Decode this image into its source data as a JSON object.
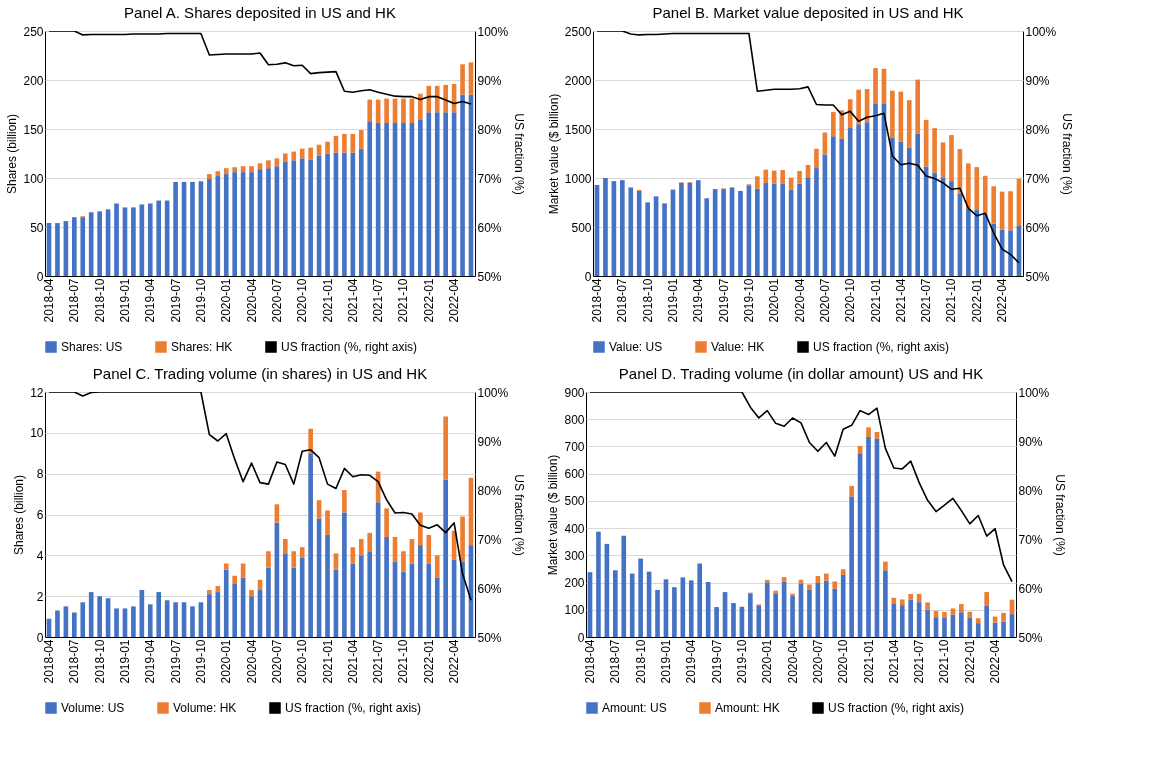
{
  "chart_data": [
    {
      "type": "bar",
      "stacked": true,
      "title": "Panel A. Shares deposited in US and HK",
      "ylabel": "Shares (billion)",
      "y2label": "US fraction (%)",
      "categories": [
        "2018-04",
        null,
        null,
        "2018-07",
        null,
        null,
        "2018-10",
        null,
        null,
        "2019-01",
        null,
        null,
        "2019-04",
        null,
        null,
        "2019-07",
        null,
        null,
        "2019-10",
        null,
        null,
        "2020-01",
        null,
        null,
        "2020-04",
        null,
        null,
        "2020-07",
        null,
        null,
        "2020-10",
        null,
        null,
        "2021-01",
        null,
        null,
        "2021-04",
        null,
        null,
        "2021-07",
        null,
        null,
        "2021-10",
        null,
        null,
        "2022-01",
        null,
        null,
        "2022-04",
        null,
        null
      ],
      "ylim": [
        0,
        250
      ],
      "yticks": [
        0,
        50,
        100,
        150,
        200,
        250
      ],
      "y2lim": [
        50,
        100
      ],
      "y2ticks": [
        {
          "value": 50,
          "label": "50%"
        },
        {
          "value": 60,
          "label": "60%"
        },
        {
          "value": 70,
          "label": "70%"
        },
        {
          "value": 80,
          "label": "80%"
        },
        {
          "value": 90,
          "label": "90%"
        },
        {
          "value": 100,
          "label": "100%"
        }
      ],
      "grid": "y",
      "legend": "bottom",
      "marker": "none",
      "line_style": "solid",
      "series": [
        {
          "name": "Shares: US",
          "color": "#4472c4",
          "values": [
            54,
            54,
            56,
            60,
            60,
            65,
            66,
            68,
            74,
            70,
            70,
            73,
            74,
            77,
            77,
            96,
            96,
            96,
            96,
            99,
            102,
            104,
            106,
            106,
            106,
            109,
            110,
            112,
            117,
            118,
            120,
            119,
            123,
            125,
            126,
            126,
            126,
            130,
            158,
            156,
            156,
            156,
            156,
            156,
            160,
            167,
            167,
            167,
            167,
            185,
            185
          ]
        },
        {
          "name": "Shares: HK",
          "color": "#ed7d31",
          "values": [
            0,
            0,
            0,
            0,
            1,
            0,
            0,
            0,
            0,
            0,
            0,
            0,
            0,
            0,
            0,
            0,
            0,
            0,
            1,
            5,
            5,
            6,
            5,
            6,
            6,
            6,
            8,
            8,
            8,
            9,
            10,
            12,
            11,
            12,
            17,
            19,
            19,
            19,
            22,
            24,
            25,
            25,
            25,
            25,
            26,
            27,
            27,
            28,
            29,
            31,
            33
          ]
        },
        {
          "name": "US fraction (%, right axis)",
          "type": "line",
          "axis": "y2",
          "color": "#000000",
          "values": [
            100,
            100,
            100,
            100,
            99.2,
            99.3,
            99.3,
            99.3,
            99.3,
            99.3,
            99.4,
            99.4,
            99.4,
            99.4,
            99.5,
            99.5,
            99.5,
            99.5,
            99.5,
            95.1,
            95.2,
            95.3,
            95.3,
            95.3,
            95.3,
            95.5,
            93.1,
            93.2,
            93.5,
            92.9,
            93,
            91.3,
            91.5,
            91.6,
            91.7,
            87.7,
            87.5,
            87.8,
            88,
            87.5,
            87.1,
            86.7,
            86.6,
            86.6,
            86,
            86.6,
            86.6,
            85.9,
            85.2,
            85.6,
            85.1
          ]
        }
      ]
    },
    {
      "type": "bar",
      "stacked": true,
      "title": "Panel B. Market value deposited in US and HK",
      "ylabel": "Market value ($ billion)",
      "y2label": "US fraction (%)",
      "categories": [
        "2018-04",
        null,
        null,
        "2018-07",
        null,
        null,
        "2018-10",
        null,
        null,
        "2019-01",
        null,
        null,
        "2019-04",
        null,
        null,
        "2019-07",
        null,
        null,
        "2019-10",
        null,
        null,
        "2020-01",
        null,
        null,
        "2020-04",
        null,
        null,
        "2020-07",
        null,
        null,
        "2020-10",
        null,
        null,
        "2021-01",
        null,
        null,
        "2021-04",
        null,
        null,
        "2021-07",
        null,
        null,
        "2021-10",
        null,
        null,
        "2022-01",
        null,
        null,
        "2022-04",
        null,
        null
      ],
      "ylim": [
        0,
        2500
      ],
      "yticks": [
        0,
        500,
        1000,
        1500,
        2000,
        2500
      ],
      "y2lim": [
        50,
        100
      ],
      "y2ticks": [
        {
          "value": 50,
          "label": "50%"
        },
        {
          "value": 60,
          "label": "60%"
        },
        {
          "value": 70,
          "label": "70%"
        },
        {
          "value": 80,
          "label": "80%"
        },
        {
          "value": 90,
          "label": "90%"
        },
        {
          "value": 100,
          "label": "100%"
        }
      ],
      "grid": "y",
      "legend": "bottom",
      "marker": "none",
      "line_style": "solid",
      "series": [
        {
          "name": "Value: US",
          "color": "#4472c4",
          "values": [
            929,
            1000,
            968,
            978,
            900,
            868,
            751,
            813,
            741,
            877,
            949,
            952,
            978,
            793,
            887,
            887,
            900,
            868,
            926,
            890,
            949,
            942,
            945,
            881,
            942,
            1007,
            1101,
            1240,
            1425,
            1399,
            1509,
            1548,
            1570,
            1755,
            1755,
            1409,
            1370,
            1308,
            1451,
            1117,
            1056,
            1007,
            968,
            839,
            686,
            680,
            631,
            534,
            473,
            466,
            518
          ]
        },
        {
          "name": "Value: HK",
          "color": "#ed7d31",
          "values": [
            0,
            0,
            0,
            0,
            7,
            10,
            0,
            0,
            0,
            7,
            7,
            7,
            0,
            0,
            0,
            7,
            7,
            0,
            10,
            127,
            136,
            133,
            137,
            123,
            130,
            126,
            197,
            224,
            249,
            291,
            295,
            353,
            337,
            366,
            359,
            482,
            511,
            486,
            553,
            476,
            453,
            356,
            470,
            456,
            463,
            431,
            392,
            382,
            388,
            399,
            476
          ]
        },
        {
          "name": "US fraction (%, right axis)",
          "type": "line",
          "axis": "y2",
          "color": "#000000",
          "values": [
            100,
            100,
            100,
            100,
            99.4,
            99.2,
            99.3,
            99.3,
            99.4,
            99.5,
            99.5,
            99.5,
            99.5,
            99.5,
            99.5,
            99.5,
            99.5,
            99.5,
            99.5,
            87.7,
            87.9,
            88.1,
            88.1,
            88.1,
            88.2,
            88.6,
            85,
            84.9,
            84.9,
            82.9,
            83.6,
            81.6,
            82.4,
            82.7,
            83.2,
            74.5,
            72.7,
            73,
            72.6,
            70.4,
            69.9,
            69,
            67.7,
            67.9,
            63.8,
            62.3,
            62.8,
            58.8,
            55.5,
            54.4,
            52.7
          ]
        }
      ]
    },
    {
      "type": "bar",
      "stacked": true,
      "title": "Panel C. Trading volume (in shares) in US and HK",
      "ylabel": "Shares (billion)",
      "y2label": "US fraction (%)",
      "categories": [
        "2018-04",
        null,
        null,
        "2018-07",
        null,
        null,
        "2018-10",
        null,
        null,
        "2019-01",
        null,
        null,
        "2019-04",
        null,
        null,
        "2019-07",
        null,
        null,
        "2019-10",
        null,
        null,
        "2020-01",
        null,
        null,
        "2020-04",
        null,
        null,
        "2020-07",
        null,
        null,
        "2020-10",
        null,
        null,
        "2021-01",
        null,
        null,
        "2021-04",
        null,
        null,
        "2021-07",
        null,
        null,
        "2021-10",
        null,
        null,
        "2022-01",
        null,
        null,
        "2022-04",
        null,
        null
      ],
      "ylim": [
        0,
        12
      ],
      "yticks": [
        0,
        2,
        4,
        6,
        8,
        10,
        12
      ],
      "y2lim": [
        50,
        100
      ],
      "y2ticks": [
        {
          "value": 50,
          "label": "50%"
        },
        {
          "value": 60,
          "label": "60%"
        },
        {
          "value": 70,
          "label": "70%"
        },
        {
          "value": 80,
          "label": "80%"
        },
        {
          "value": 90,
          "label": "90%"
        },
        {
          "value": 100,
          "label": "100%"
        }
      ],
      "grid": "y",
      "legend": "bottom",
      "marker": "none",
      "line_style": "solid",
      "series": [
        {
          "name": "Volume: US",
          "color": "#4472c4",
          "values": [
            0.9,
            1.3,
            1.5,
            1.2,
            1.7,
            2.2,
            2.0,
            1.9,
            1.4,
            1.4,
            1.5,
            2.3,
            1.6,
            2.2,
            1.8,
            1.7,
            1.7,
            1.5,
            1.7,
            2.1,
            2.2,
            3.3,
            2.6,
            2.9,
            2.0,
            2.3,
            3.4,
            5.6,
            4.1,
            3.4,
            3.9,
            9.0,
            5.8,
            5.0,
            3.3,
            6.1,
            3.6,
            4.0,
            4.2,
            6.6,
            4.9,
            3.7,
            3.2,
            3.6,
            4.5,
            3.6,
            2.9,
            7.7,
            3.8,
            3.7,
            4.5
          ]
        },
        {
          "name": "Volume: HK",
          "color": "#ed7d31",
          "values": [
            0,
            0,
            0,
            0,
            0,
            0,
            0,
            0,
            0,
            0,
            0,
            0,
            0,
            0,
            0,
            0,
            0,
            0,
            0,
            0.2,
            0.3,
            0.3,
            0.4,
            0.7,
            0.3,
            0.5,
            0.8,
            0.9,
            0.7,
            0.8,
            0.5,
            1.2,
            0.9,
            1.2,
            0.8,
            1.1,
            0.8,
            0.8,
            0.9,
            1.5,
            1.4,
            1.2,
            1.0,
            1.2,
            1.6,
            1.4,
            1.1,
            3.1,
            1.4,
            2.2,
            3.3
          ]
        },
        {
          "name": "US fraction (%, right axis)",
          "type": "line",
          "axis": "y2",
          "color": "#000000",
          "values": [
            100,
            100,
            100,
            100,
            99.2,
            99.9,
            100,
            100,
            100,
            100,
            100,
            100,
            100,
            100,
            100,
            100,
            100,
            100,
            100,
            91.3,
            90,
            91.5,
            86.3,
            81.7,
            85.5,
            81.5,
            81.2,
            85.7,
            85.2,
            81.2,
            87.9,
            88.2,
            86.6,
            81.2,
            80.3,
            84.4,
            82.7,
            83.1,
            83,
            81.7,
            78,
            75.3,
            75.4,
            75.1,
            72.8,
            72.2,
            72.9,
            71.3,
            73.3,
            62.9,
            57.5
          ]
        }
      ]
    },
    {
      "type": "bar",
      "stacked": true,
      "title": "Panel D. Trading volume (in dollar amount)  US and HK",
      "ylabel": "Market value ($ billion)",
      "y2label": "US fraction (%)",
      "categories": [
        "2018-04",
        null,
        null,
        "2018-07",
        null,
        null,
        "2018-10",
        null,
        null,
        "2019-01",
        null,
        null,
        "2019-04",
        null,
        null,
        "2019-07",
        null,
        null,
        "2019-10",
        null,
        null,
        "2020-01",
        null,
        null,
        "2020-04",
        null,
        null,
        "2020-07",
        null,
        null,
        "2020-10",
        null,
        null,
        "2021-01",
        null,
        null,
        "2021-04",
        null,
        null,
        "2021-07",
        null,
        null,
        "2021-10",
        null,
        null,
        "2022-01",
        null,
        null,
        "2022-04",
        null,
        null
      ],
      "ylim": [
        0,
        900
      ],
      "yticks": [
        0,
        100,
        200,
        300,
        400,
        500,
        600,
        700,
        800,
        900
      ],
      "y2lim": [
        50,
        100
      ],
      "y2ticks": [
        {
          "value": 50,
          "label": "50%"
        },
        {
          "value": 60,
          "label": "60%"
        },
        {
          "value": 70,
          "label": "70%"
        },
        {
          "value": 80,
          "label": "80%"
        },
        {
          "value": 90,
          "label": "90%"
        },
        {
          "value": 100,
          "label": "100%"
        }
      ],
      "grid": "y",
      "legend": "bottom",
      "marker": "none",
      "line_style": "solid",
      "series": [
        {
          "name": "Amount: US",
          "color": "#4472c4",
          "values": [
            238,
            387,
            342,
            245,
            372,
            233,
            288,
            240,
            173,
            212,
            183,
            219,
            208,
            270,
            202,
            110,
            165,
            125,
            111,
            158,
            114,
            201,
            158,
            204,
            151,
            197,
            173,
            198,
            207,
            177,
            228,
            516,
            675,
            735,
            728,
            245,
            121,
            117,
            137,
            128,
            100,
            73,
            70,
            82,
            91,
            70,
            51,
            114,
            53,
            57,
            84
          ]
        },
        {
          "name": "Amount: HK",
          "color": "#ed7d31",
          "values": [
            0,
            0,
            0,
            0,
            0,
            0,
            0,
            0,
            0,
            0,
            0,
            0,
            0,
            0,
            0,
            0,
            0,
            0,
            0,
            5,
            6,
            9,
            12,
            16,
            8,
            13,
            20,
            26,
            26,
            27,
            21,
            39,
            27,
            35,
            25,
            32,
            23,
            21,
            21,
            30,
            27,
            23,
            22,
            23,
            30,
            23,
            18,
            51,
            22,
            32,
            53
          ]
        },
        {
          "name": "US fraction (%, right axis)",
          "type": "line",
          "axis": "y2",
          "color": "#000000",
          "values": [
            100,
            100,
            100,
            100,
            100,
            100,
            100,
            100,
            100,
            100,
            100,
            100,
            100,
            100,
            100,
            100,
            100,
            100,
            100,
            96.9,
            94.7,
            96.2,
            93.6,
            93,
            94.7,
            93.7,
            89.7,
            87.9,
            89.7,
            86.9,
            92.4,
            93.2,
            96.2,
            95.4,
            96.7,
            88.5,
            84.5,
            84.3,
            85.9,
            81.5,
            77.9,
            75.6,
            76.9,
            78.3,
            75.8,
            73.1,
            74.8,
            70.6,
            72.1,
            64.7,
            61.3
          ]
        }
      ]
    }
  ]
}
